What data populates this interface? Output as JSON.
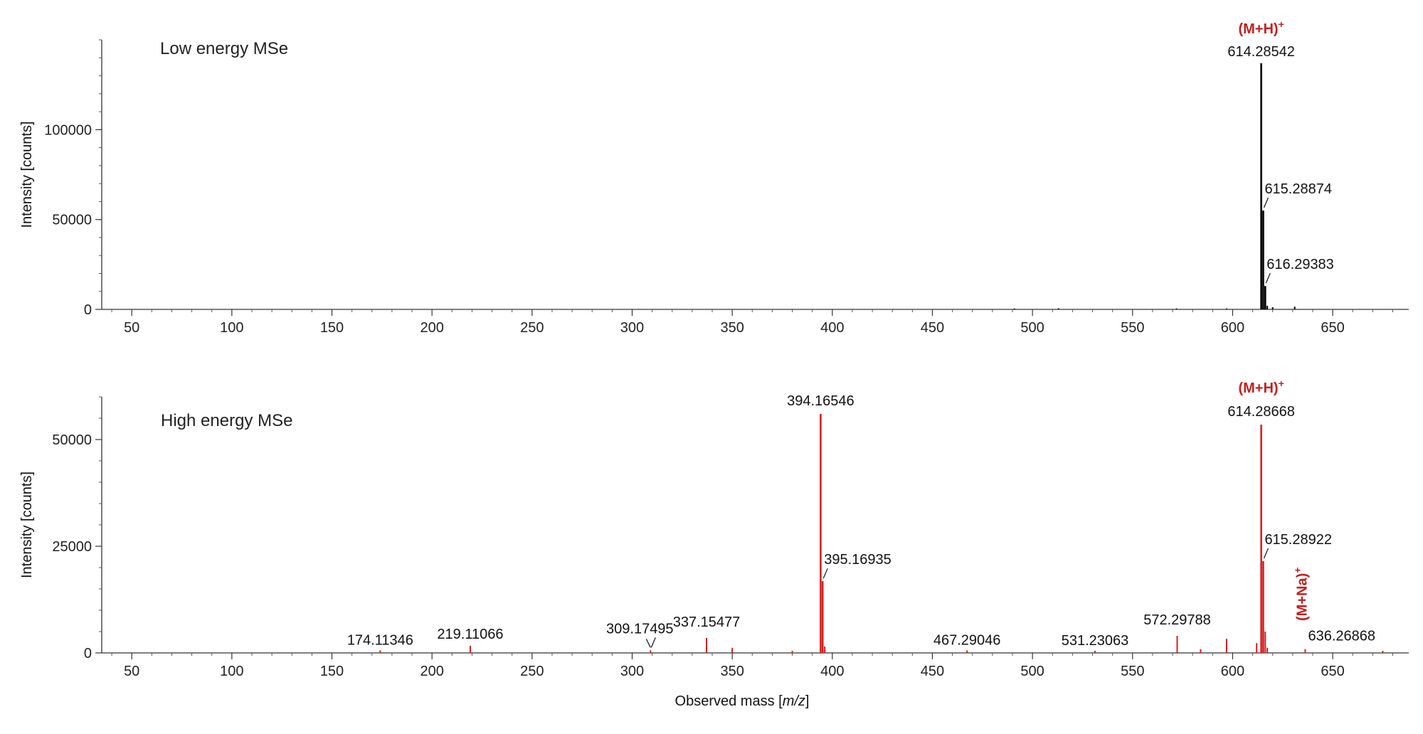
{
  "xlabel_main": "Observed mass [",
  "xlabel_ital": "m/z",
  "xlabel_end": "]",
  "chart_data": [
    {
      "type": "bar",
      "title": "Low energy MSe",
      "ylabel": "Intensity [counts]",
      "xlim": [
        35,
        688
      ],
      "ylim": [
        0,
        150000
      ],
      "xticks": [
        50,
        100,
        150,
        200,
        250,
        300,
        350,
        400,
        450,
        500,
        550,
        600,
        650
      ],
      "yticks": [
        0,
        50000,
        100000
      ],
      "ytick_labels": [
        "0",
        "50000",
        "100000"
      ],
      "color": "#000000",
      "peaks": [
        {
          "mz": 614.28542,
          "intensity": 137000
        },
        {
          "mz": 615.28874,
          "intensity": 55000
        },
        {
          "mz": 616.29383,
          "intensity": 13000
        },
        {
          "mz": 617.3,
          "intensity": 2000
        },
        {
          "mz": 620.0,
          "intensity": 1200
        },
        {
          "mz": 631.0,
          "intensity": 1500
        },
        {
          "mz": 513.0,
          "intensity": 600
        },
        {
          "mz": 491.0,
          "intensity": 500
        },
        {
          "mz": 572.0,
          "intensity": 500
        },
        {
          "mz": 597.0,
          "intensity": 500
        }
      ],
      "labels": [
        {
          "text": "614.28542",
          "mz": 614.28542
        },
        {
          "text": "615.28874",
          "mz": 615.28874
        },
        {
          "text": "616.29383",
          "mz": 616.29383
        }
      ],
      "ion_labels": [
        {
          "text": "(M+H)",
          "sup": "+",
          "mz": 614.28542
        }
      ]
    },
    {
      "type": "bar",
      "title": "High energy MSe",
      "ylabel": "Intensity [counts]",
      "xlim": [
        35,
        688
      ],
      "ylim": [
        0,
        60000
      ],
      "xticks": [
        50,
        100,
        150,
        200,
        250,
        300,
        350,
        400,
        450,
        500,
        550,
        600,
        650
      ],
      "yticks": [
        0,
        25000,
        50000
      ],
      "ytick_labels": [
        "0",
        "25000",
        "50000"
      ],
      "color": "#d42020",
      "peaks": [
        {
          "mz": 174.11346,
          "intensity": 600
        },
        {
          "mz": 219.11066,
          "intensity": 1700
        },
        {
          "mz": 309.17495,
          "intensity": 600
        },
        {
          "mz": 337.15477,
          "intensity": 3500
        },
        {
          "mz": 350.0,
          "intensity": 1200
        },
        {
          "mz": 380.0,
          "intensity": 500
        },
        {
          "mz": 394.16546,
          "intensity": 56000
        },
        {
          "mz": 395.16935,
          "intensity": 16800
        },
        {
          "mz": 396.2,
          "intensity": 1500
        },
        {
          "mz": 467.29046,
          "intensity": 600
        },
        {
          "mz": 531.23063,
          "intensity": 500
        },
        {
          "mz": 572.29788,
          "intensity": 4000
        },
        {
          "mz": 584.0,
          "intensity": 900
        },
        {
          "mz": 597.0,
          "intensity": 3300
        },
        {
          "mz": 612.0,
          "intensity": 2300
        },
        {
          "mz": 614.28668,
          "intensity": 53500
        },
        {
          "mz": 615.28922,
          "intensity": 21500
        },
        {
          "mz": 616.3,
          "intensity": 5000
        },
        {
          "mz": 617.3,
          "intensity": 1200
        },
        {
          "mz": 636.26868,
          "intensity": 900
        },
        {
          "mz": 675.0,
          "intensity": 500
        }
      ],
      "labels": [
        {
          "text": "174.11346",
          "mz": 174.11346
        },
        {
          "text": "219.11066",
          "mz": 219.11066
        },
        {
          "text": "309.17495",
          "mz": 309.17495
        },
        {
          "text": "337.15477",
          "mz": 337.15477
        },
        {
          "text": "394.16546",
          "mz": 394.16546
        },
        {
          "text": "395.16935",
          "mz": 395.16935
        },
        {
          "text": "467.29046",
          "mz": 467.29046
        },
        {
          "text": "531.23063",
          "mz": 531.23063
        },
        {
          "text": "572.29788",
          "mz": 572.29788
        },
        {
          "text": "614.28668",
          "mz": 614.28668
        },
        {
          "text": "615.28922",
          "mz": 615.28922
        },
        {
          "text": "636.26868",
          "mz": 636.26868
        }
      ],
      "ion_labels": [
        {
          "text": "(M+H)",
          "sup": "+",
          "mz": 614.28668
        },
        {
          "text": "(M+Na)",
          "sup": "+",
          "mz": 636.26868
        }
      ]
    }
  ]
}
